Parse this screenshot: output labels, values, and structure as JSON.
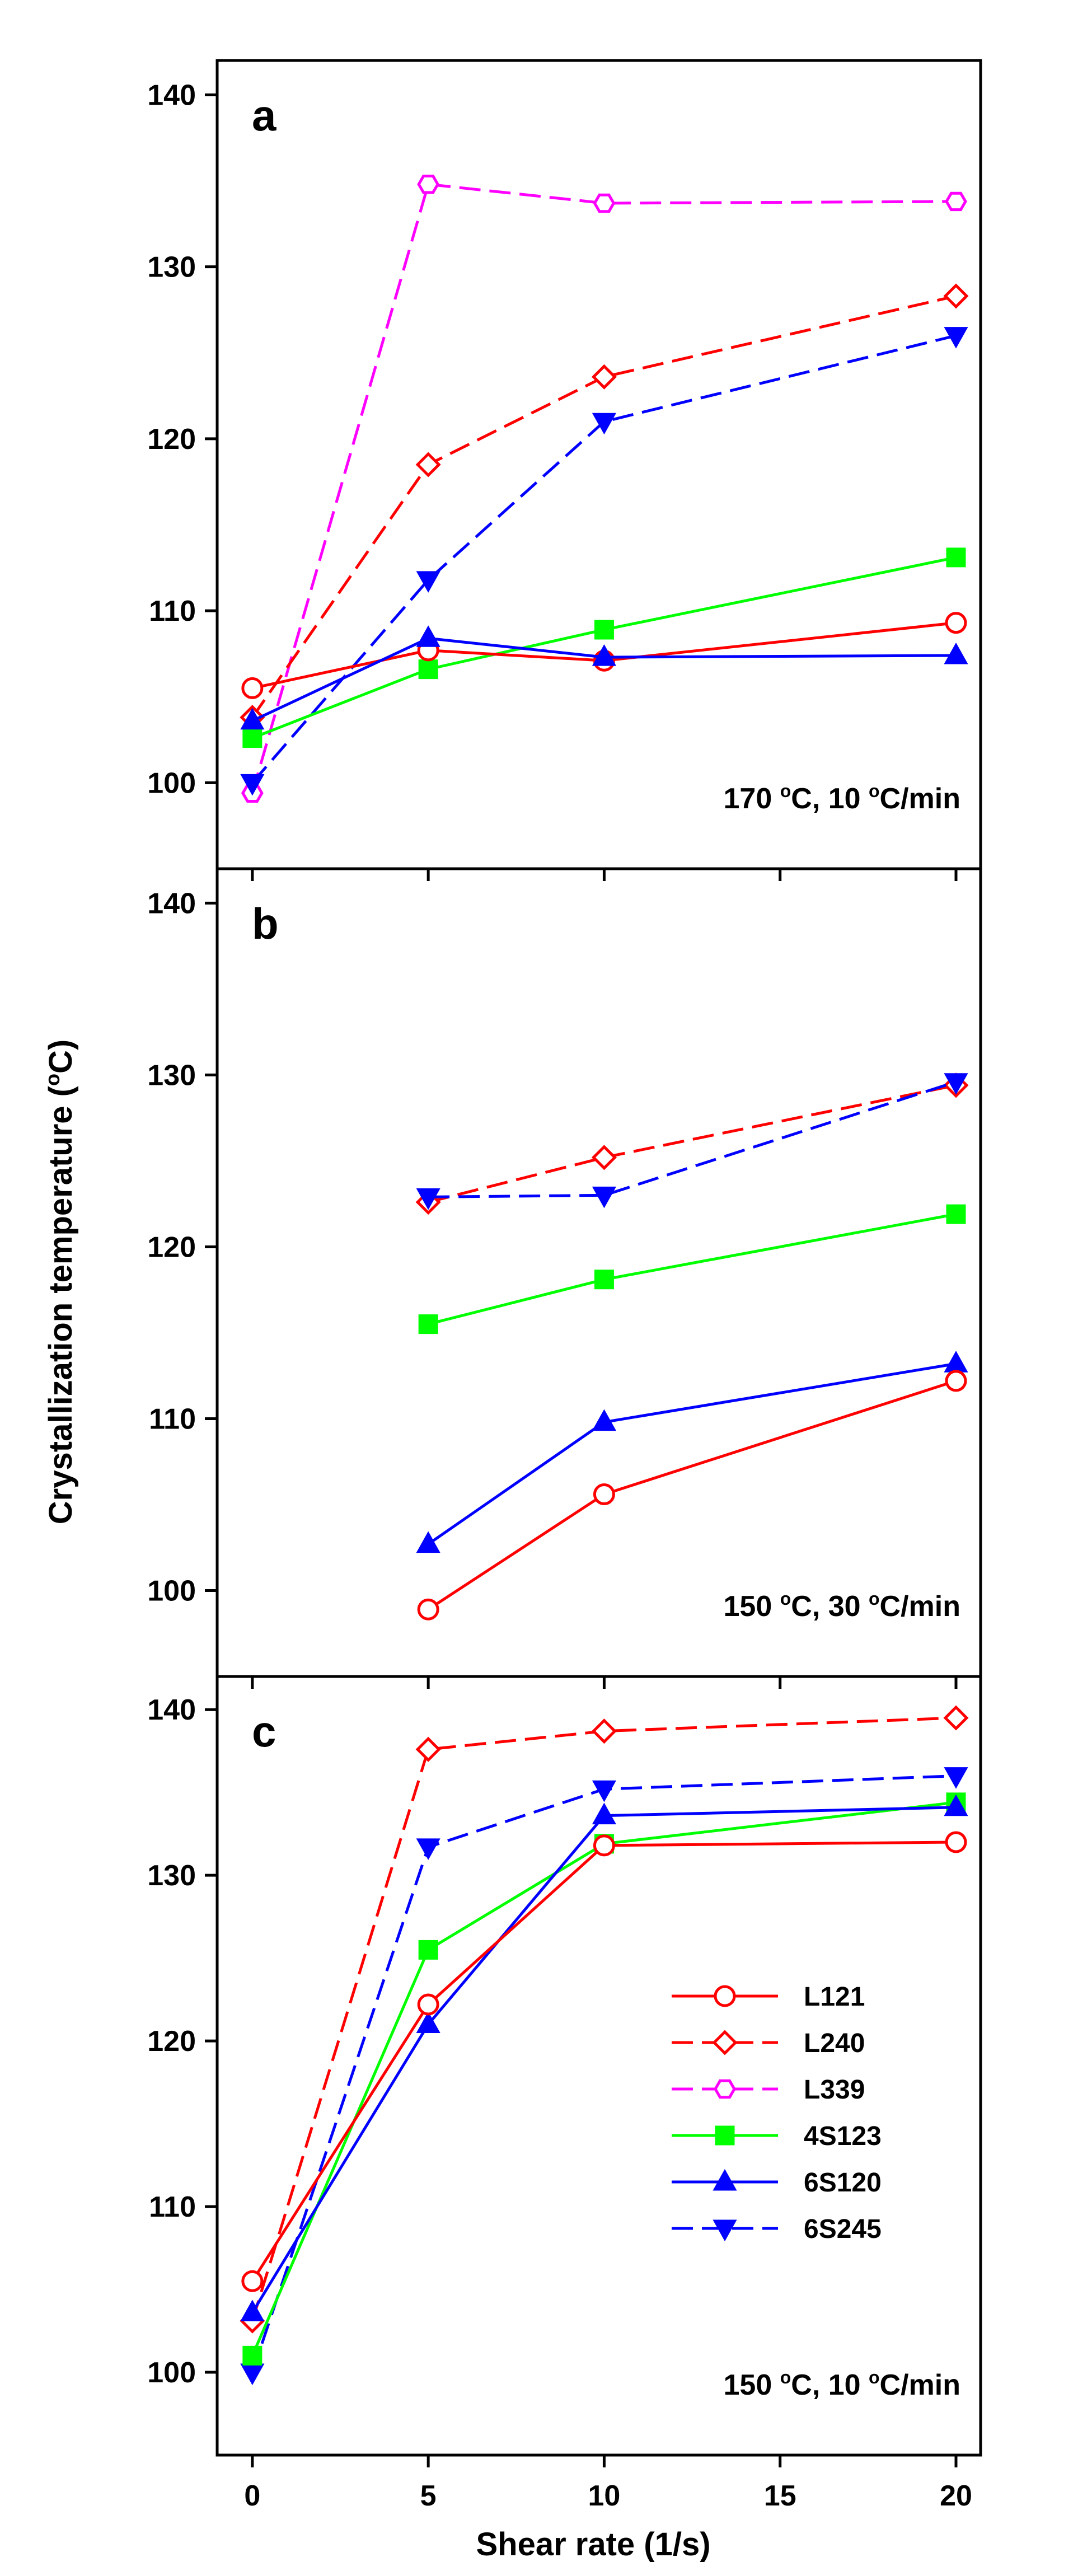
{
  "chart_data": {
    "type": "line",
    "ylabel": "Crystallization temperature (",
    "ylabel_unit": "C)",
    "degree_symbol": "o",
    "xlabel": "Shear rate (1/s)",
    "x_ticks": [
      "0",
      "5",
      "10",
      "15",
      "20"
    ],
    "x_range": [
      -1,
      20.7
    ],
    "y_ticks": [
      "100",
      "110",
      "120",
      "130",
      "140"
    ],
    "legend": [
      {
        "name": "L121",
        "color": "#ff0000",
        "dash": false,
        "marker": "circle-open"
      },
      {
        "name": "L240",
        "color": "#ff0000",
        "dash": true,
        "marker": "diamond-open"
      },
      {
        "name": "L339",
        "color": "#ff00ff",
        "dash": true,
        "marker": "hexagon-open"
      },
      {
        "name": "4S123",
        "color": "#00ff00",
        "dash": false,
        "marker": "square-filled"
      },
      {
        "name": "6S120",
        "color": "#0000ff",
        "dash": false,
        "marker": "triangle-up-filled"
      },
      {
        "name": "6S245",
        "color": "#0000ff",
        "dash": true,
        "marker": "triangle-down-filled"
      }
    ],
    "panels": [
      {
        "label": "a",
        "annotation": {
          "t1": "170 ",
          "t2": "C, 10 ",
          "t3": "C/min"
        },
        "ylim": [
          95,
          142
        ],
        "series": [
          {
            "name": "L339",
            "x": [
              0,
              5,
              10,
              20
            ],
            "values": [
              99.4,
              134.8,
              133.7,
              133.8
            ]
          },
          {
            "name": "L240",
            "x": [
              0,
              5,
              10,
              20
            ],
            "values": [
              103.8,
              118.5,
              123.6,
              128.3
            ]
          },
          {
            "name": "6S245",
            "x": [
              0,
              5,
              10,
              20
            ],
            "values": [
              100.0,
              111.8,
              121.0,
              126.0
            ]
          },
          {
            "name": "4S123",
            "x": [
              0,
              5,
              10,
              20
            ],
            "values": [
              102.6,
              106.6,
              108.9,
              113.1
            ]
          },
          {
            "name": "L121",
            "x": [
              0,
              5,
              10,
              20
            ],
            "values": [
              105.5,
              107.7,
              107.1,
              109.3
            ]
          },
          {
            "name": "6S120",
            "x": [
              0,
              5,
              10,
              20
            ],
            "values": [
              103.6,
              108.4,
              107.3,
              107.4
            ]
          }
        ]
      },
      {
        "label": "b",
        "annotation": {
          "t1": "150 ",
          "t2": "C, 30 ",
          "t3": "C/min"
        },
        "ylim": [
          95,
          142
        ],
        "series": [
          {
            "name": "L240",
            "x": [
              5,
              10,
              20
            ],
            "values": [
              122.6,
              125.2,
              129.4
            ]
          },
          {
            "name": "6S245",
            "x": [
              5,
              10,
              20
            ],
            "values": [
              122.9,
              123.0,
              129.6
            ]
          },
          {
            "name": "4S123",
            "x": [
              5,
              10,
              20
            ],
            "values": [
              115.5,
              118.1,
              121.9
            ]
          },
          {
            "name": "6S120",
            "x": [
              5,
              10,
              20
            ],
            "values": [
              102.7,
              109.8,
              113.2
            ]
          },
          {
            "name": "L121",
            "x": [
              5,
              10,
              20
            ],
            "values": [
              98.9,
              105.6,
              112.2
            ]
          }
        ]
      },
      {
        "label": "c",
        "annotation": {
          "t1": "150 ",
          "t2": "C, 10 ",
          "t3": "C/min"
        },
        "ylim": [
          95,
          142
        ],
        "series": [
          {
            "name": "L240",
            "x": [
              0,
              5,
              10,
              20
            ],
            "values": [
              103.1,
              137.6,
              138.7,
              139.5
            ]
          },
          {
            "name": "6S245",
            "x": [
              0,
              5,
              10,
              20
            ],
            "values": [
              100.0,
              131.7,
              135.2,
              136.0
            ]
          },
          {
            "name": "4S123",
            "x": [
              0,
              5,
              10,
              20
            ],
            "values": [
              101.0,
              125.5,
              131.9,
              134.4
            ]
          },
          {
            "name": "6S120",
            "x": [
              0,
              5,
              10,
              20
            ],
            "values": [
              103.6,
              121.0,
              133.6,
              134.1
            ]
          },
          {
            "name": "L121",
            "x": [
              0,
              5,
              10,
              20
            ],
            "values": [
              105.5,
              122.2,
              131.8,
              132.0
            ]
          }
        ]
      }
    ]
  }
}
